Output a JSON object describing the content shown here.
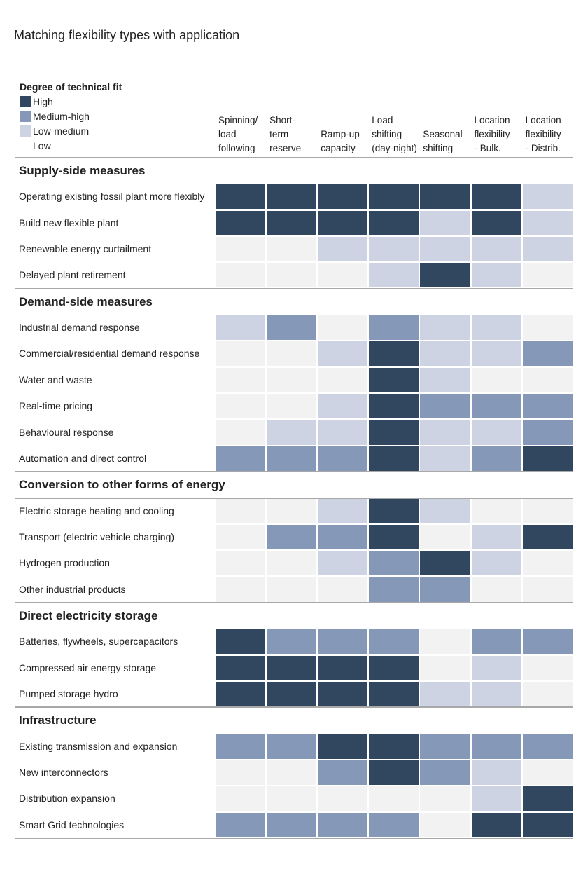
{
  "chart_data": {
    "type": "heatmap",
    "title": "Matching flexibility types with application",
    "legend": {
      "title": "Degree of technical fit",
      "placement": "top-left",
      "levels": [
        {
          "key": "H",
          "label": "High",
          "color": "#31465f"
        },
        {
          "key": "MH",
          "label": "Medium-high",
          "color": "#8598b8"
        },
        {
          "key": "LM",
          "label": "Low-medium",
          "color": "#ced3e3"
        },
        {
          "key": "L",
          "label": "Low",
          "color": "#f2f2f2"
        }
      ]
    },
    "columns": [
      [
        "Spinning/",
        "load",
        "following"
      ],
      [
        "Short-",
        "term",
        "reserve"
      ],
      [
        "Ramp-up",
        "capacity"
      ],
      [
        "Load",
        "shifting",
        "(day-night)"
      ],
      [
        "Seasonal",
        "shifting"
      ],
      [
        "Location",
        "flexibility",
        "- Bulk."
      ],
      [
        "Location",
        "flexibility",
        "- Distrib."
      ]
    ],
    "sections": [
      {
        "name": "Supply-side measures",
        "rows": [
          {
            "label": "Operating existing fossil plant more flexibly",
            "values": [
              "H",
              "H",
              "H",
              "H",
              "H",
              "H",
              "LM"
            ]
          },
          {
            "label": "Build new flexible plant",
            "values": [
              "H",
              "H",
              "H",
              "H",
              "LM",
              "H",
              "LM"
            ]
          },
          {
            "label": "Renewable energy curtailment",
            "values": [
              "L",
              "L",
              "LM",
              "LM",
              "LM",
              "LM",
              "LM"
            ]
          },
          {
            "label": "Delayed plant retirement",
            "values": [
              "L",
              "L",
              "L",
              "LM",
              "H",
              "LM",
              "L"
            ]
          }
        ]
      },
      {
        "name": "Demand-side measures",
        "rows": [
          {
            "label": "Industrial demand response",
            "values": [
              "LM",
              "MH",
              "L",
              "MH",
              "LM",
              "LM",
              "L"
            ]
          },
          {
            "label": "Commercial/residential demand response",
            "values": [
              "L",
              "L",
              "LM",
              "H",
              "LM",
              "LM",
              "MH"
            ]
          },
          {
            "label": "Water and waste",
            "values": [
              "L",
              "L",
              "L",
              "H",
              "LM",
              "L",
              "L"
            ]
          },
          {
            "label": "Real-time pricing",
            "values": [
              "L",
              "L",
              "LM",
              "H",
              "MH",
              "MH",
              "MH"
            ]
          },
          {
            "label": "Behavioural response",
            "values": [
              "L",
              "LM",
              "LM",
              "H",
              "LM",
              "LM",
              "MH"
            ]
          },
          {
            "label": "Automation and direct control",
            "values": [
              "MH",
              "MH",
              "MH",
              "H",
              "LM",
              "MH",
              "H"
            ]
          }
        ]
      },
      {
        "name": "Conversion to other forms of energy",
        "rows": [
          {
            "label": "Electric storage heating and cooling",
            "values": [
              "L",
              "L",
              "LM",
              "H",
              "LM",
              "L",
              "L"
            ]
          },
          {
            "label": "Transport (electric vehicle charging)",
            "values": [
              "L",
              "MH",
              "MH",
              "H",
              "L",
              "LM",
              "H"
            ]
          },
          {
            "label": "Hydrogen production",
            "values": [
              "L",
              "L",
              "LM",
              "MH",
              "H",
              "LM",
              "L"
            ]
          },
          {
            "label": "Other industrial products",
            "values": [
              "L",
              "L",
              "L",
              "MH",
              "MH",
              "L",
              "L"
            ]
          }
        ]
      },
      {
        "name": "Direct electricity storage",
        "rows": [
          {
            "label": "Batteries, flywheels, supercapacitors",
            "values": [
              "H",
              "MH",
              "MH",
              "MH",
              "L",
              "MH",
              "MH"
            ]
          },
          {
            "label": "Compressed air energy storage",
            "values": [
              "H",
              "H",
              "H",
              "H",
              "L",
              "LM",
              "L"
            ]
          },
          {
            "label": "Pumped storage hydro",
            "values": [
              "H",
              "H",
              "H",
              "H",
              "LM",
              "LM",
              "L"
            ]
          }
        ]
      },
      {
        "name": "Infrastructure",
        "rows": [
          {
            "label": "Existing transmission and expansion",
            "values": [
              "MH",
              "MH",
              "H",
              "H",
              "MH",
              "MH",
              "MH"
            ]
          },
          {
            "label": "New interconnectors",
            "values": [
              "L",
              "L",
              "MH",
              "H",
              "MH",
              "LM",
              "L"
            ]
          },
          {
            "label": "Distribution expansion",
            "values": [
              "L",
              "L",
              "L",
              "L",
              "L",
              "LM",
              "H"
            ]
          },
          {
            "label": "Smart Grid technologies",
            "values": [
              "MH",
              "MH",
              "MH",
              "MH",
              "L",
              "H",
              "H"
            ]
          }
        ]
      }
    ]
  }
}
